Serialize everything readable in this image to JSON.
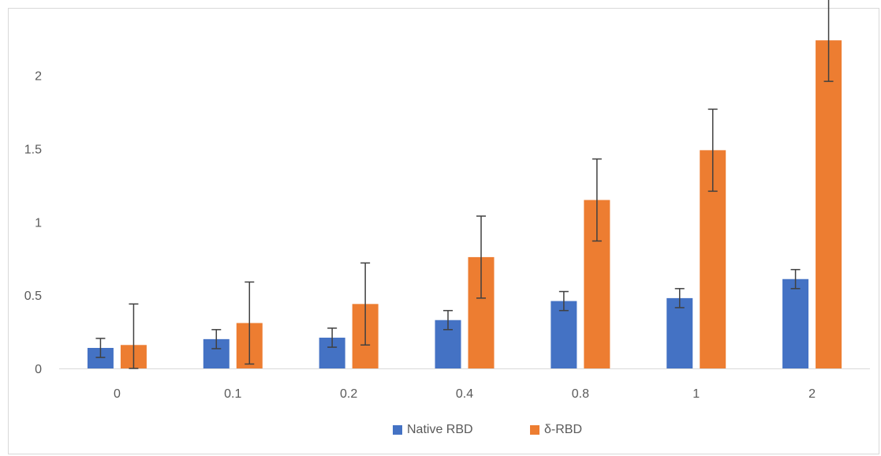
{
  "chart_data": {
    "type": "bar",
    "categories": [
      "0",
      "0.1",
      "0.2",
      "0.4",
      "0.8",
      "1",
      "2"
    ],
    "series": [
      {
        "name": "Native RBD",
        "color": "#4472c4",
        "values": [
          0.14,
          0.2,
          0.21,
          0.33,
          0.46,
          0.48,
          0.61
        ],
        "error": [
          0.065,
          0.065,
          0.065,
          0.065,
          0.065,
          0.065,
          0.065
        ]
      },
      {
        "name": "δ-RBD",
        "color": "#ed7d31",
        "values": [
          0.16,
          0.31,
          0.44,
          0.76,
          1.15,
          1.49,
          2.24
        ],
        "error": [
          0.28,
          0.28,
          0.28,
          0.28,
          0.28,
          0.28,
          0.28
        ]
      }
    ],
    "y_ticks": [
      "0",
      "0.5",
      "1",
      "1.5",
      "2"
    ],
    "ylim": [
      0,
      2.3
    ],
    "title": "",
    "xlabel": "",
    "ylabel": "",
    "grid": false,
    "legend_position": "bottom",
    "error_bar_color": "#404040",
    "axis_color": "#d9d9d9"
  }
}
